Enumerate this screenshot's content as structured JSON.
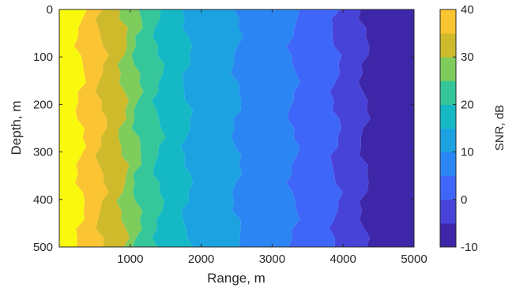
{
  "chart_data": {
    "type": "heatmap",
    "xlabel": "Range, m",
    "ylabel": "Depth, m",
    "colorbar_label": "SNR, dB",
    "xlim": [
      0,
      5000
    ],
    "ylim": [
      0,
      500
    ],
    "y_reversed": true,
    "x_ticks": [
      1000,
      2000,
      3000,
      4000,
      5000
    ],
    "y_ticks": [
      0,
      100,
      200,
      300,
      400,
      500
    ],
    "color_levels": [
      -10,
      -5,
      0,
      5,
      10,
      15,
      20,
      25,
      30,
      35,
      40
    ],
    "colorbar_ticks": [
      -10,
      0,
      10,
      20,
      30,
      40
    ],
    "colormap": [
      "#3e26a8",
      "#4743d9",
      "#3e67f9",
      "#2b86f3",
      "#1ca2e1",
      "#14b9c5",
      "#35c69a",
      "#7ecc5c",
      "#cfba2c",
      "#fbc432",
      "#f9f90e"
    ],
    "range_bands_m": [
      {
        "from": 0,
        "to": 300,
        "snr_db": 40
      },
      {
        "from": 300,
        "to": 600,
        "snr_db": 35
      },
      {
        "from": 600,
        "to": 900,
        "snr_db": 30
      },
      {
        "from": 900,
        "to": 1100,
        "snr_db": 25
      },
      {
        "from": 1100,
        "to": 1400,
        "snr_db": 20
      },
      {
        "from": 1400,
        "to": 1800,
        "snr_db": 15
      },
      {
        "from": 1800,
        "to": 2500,
        "snr_db": 10
      },
      {
        "from": 2500,
        "to": 3300,
        "snr_db": 5
      },
      {
        "from": 3300,
        "to": 3900,
        "snr_db": 0
      },
      {
        "from": 3900,
        "to": 4300,
        "snr_db": -5
      },
      {
        "from": 4300,
        "to": 5000,
        "snr_db": -10
      }
    ]
  }
}
